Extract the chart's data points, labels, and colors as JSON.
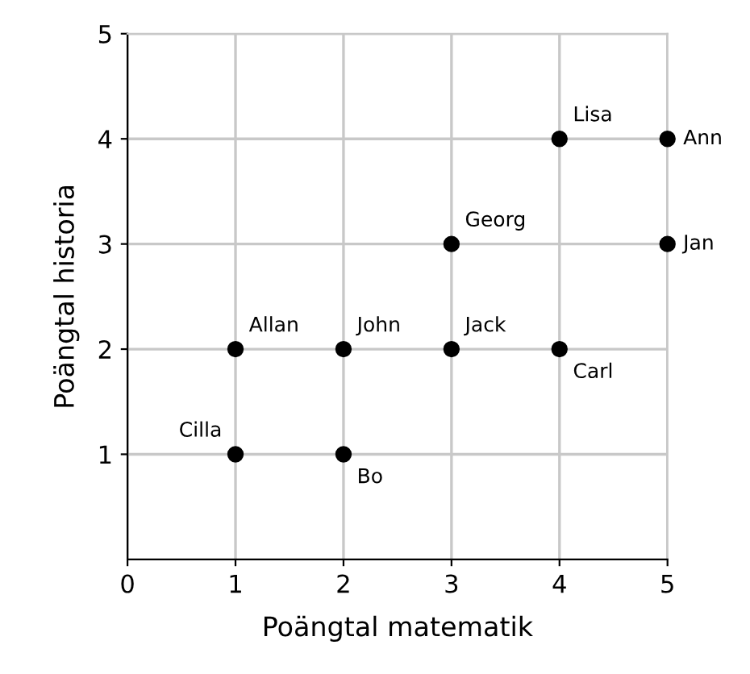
{
  "chart_data": {
    "type": "scatter",
    "xlabel": "Poängtal matematik",
    "ylabel": "Poängtal historia",
    "x": [
      1,
      2,
      1,
      2,
      3,
      4,
      3,
      5,
      4,
      5
    ],
    "series": [
      {
        "color": "#000000",
        "values": [
          1,
          1,
          2,
          2,
          2,
          2,
          3,
          3,
          4,
          4
        ]
      }
    ],
    "annotations": [
      {
        "text": "Cilla",
        "x": 1,
        "y": 1
      },
      {
        "text": "Bo",
        "x": 2,
        "y": 1
      },
      {
        "text": "Allan",
        "x": 1,
        "y": 2
      },
      {
        "text": "John",
        "x": 2,
        "y": 2
      },
      {
        "text": "Jack",
        "x": 3,
        "y": 2
      },
      {
        "text": "Carl",
        "x": 4,
        "y": 2
      },
      {
        "text": "Georg",
        "x": 3,
        "y": 3
      },
      {
        "text": "Jan",
        "x": 5,
        "y": 3
      },
      {
        "text": "Lisa",
        "x": 4,
        "y": 4
      },
      {
        "text": "Ann",
        "x": 5,
        "y": 4
      }
    ],
    "xlim": [
      0,
      5
    ],
    "ylim": [
      0,
      5
    ],
    "xticks": [
      0,
      1,
      2,
      3,
      4,
      5
    ],
    "yticks": [
      1,
      2,
      3,
      4,
      5
    ],
    "grid": true,
    "marker": "circle"
  }
}
